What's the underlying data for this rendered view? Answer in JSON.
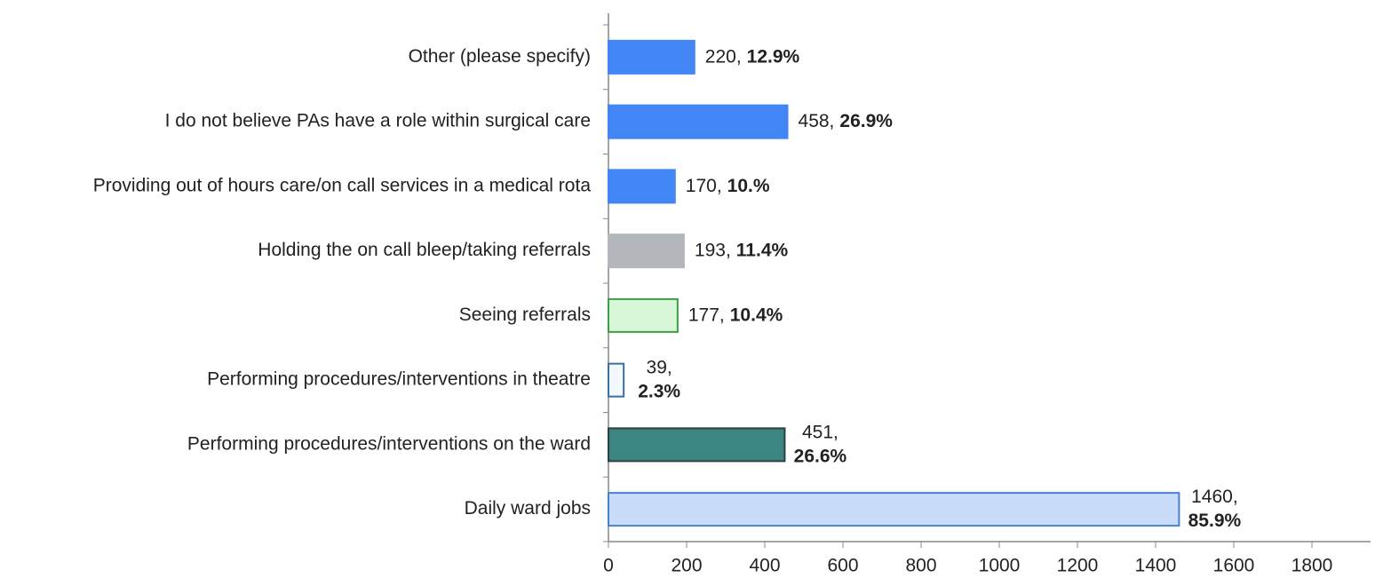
{
  "chart_data": {
    "type": "barh",
    "categories": [
      "Other (please specify)",
      "I do not believe PAs have a role within surgical care",
      "Providing out of hours care/on call services in a medical rota",
      "Holding the on call bleep/taking referrals",
      "Seeing referrals",
      "Performing procedures/interventions in theatre",
      "Performing procedures/interventions on the ward",
      "Daily ward jobs"
    ],
    "values": [
      220,
      458,
      170,
      193,
      177,
      39,
      451,
      1460
    ],
    "value_labels": [
      "220,",
      "458,",
      "170,",
      "193,",
      "177,",
      "39,",
      "451,",
      "1460,"
    ],
    "percent_labels": [
      "12.9%",
      "26.9%",
      "10.%",
      "11.4%",
      "10.4%",
      "2.3%",
      "26.6%",
      "85.9%"
    ],
    "colors": [
      "#4285f4",
      "#4285f4",
      "#4285f4",
      "#b3b6bb",
      "#d8f6d8",
      "#f3f8fc",
      "#3b8582",
      "#c9dcfa"
    ],
    "edge_colors": [
      "#4285f4",
      "#4285f4",
      "#4285f4",
      "#b3b6bb",
      "#3e9e46",
      "#3a6ea5",
      "#2f3f3f",
      "#4a80d0"
    ],
    "xlim": [
      0,
      1950
    ],
    "xticks": [
      0,
      200,
      400,
      600,
      800,
      1000,
      1200,
      1400,
      1600,
      1800
    ],
    "grid": false
  }
}
